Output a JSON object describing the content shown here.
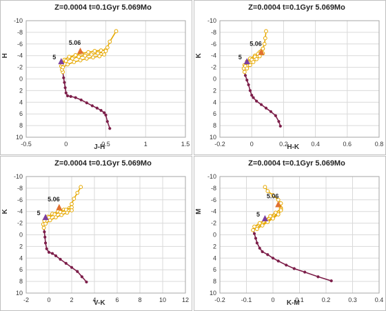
{
  "chart_data": [
    {
      "type": "scatter",
      "title": "Z=0.0004  t=0.1Gyr  5.069Mo",
      "xlabel": "J-H",
      "ylabel": "H",
      "xlim": [
        -0.5,
        1.5
      ],
      "ylim": [
        10,
        -10
      ],
      "xticks": [
        "-0.5",
        "0",
        "0.5",
        "1",
        "1.5"
      ],
      "yticks": [
        "-10",
        "-8",
        "-6",
        "-4",
        "-2",
        "0",
        "2",
        "4",
        "6",
        "8",
        "10"
      ],
      "xtick_values": [
        -0.5,
        0,
        0.5,
        1,
        1.5
      ],
      "ytick_values": [
        -10,
        -8,
        -6,
        -4,
        -2,
        0,
        2,
        4,
        6,
        8,
        10
      ],
      "grid": true,
      "series": [
        {
          "color": "#7d1f4a",
          "x": [
            0.55,
            0.52,
            0.5,
            0.48,
            0.44,
            0.39,
            0.33,
            0.26,
            0.19,
            0.12,
            0.06,
            0.02,
            0.0,
            -0.01,
            -0.02,
            -0.03,
            -0.04
          ],
          "y": [
            8.5,
            7.3,
            6.2,
            5.8,
            5.4,
            5.0,
            4.6,
            4.1,
            3.6,
            3.2,
            3.0,
            2.9,
            2.4,
            1.5,
            0.6,
            -0.2,
            -1.2
          ]
        },
        {
          "color": "#e6a800",
          "x": [
            -0.04,
            -0.05,
            -0.06,
            -0.05,
            -0.02,
            0.04,
            0.12,
            0.2,
            0.28,
            0.36,
            0.44,
            0.5,
            0.52,
            0.55,
            0.63
          ],
          "y": [
            -1.2,
            -1.6,
            -2.2,
            -2.8,
            -3.3,
            -3.8,
            -4.1,
            -4.4,
            -4.6,
            -4.8,
            -4.9,
            -5.0,
            -5.4,
            -6.4,
            -8.2
          ]
        },
        {
          "color": "#e6a800",
          "x": [
            -0.05,
            0.0,
            0.08,
            0.16,
            0.24,
            0.32,
            0.4,
            0.47,
            0.5
          ],
          "y": [
            -2.6,
            -3.1,
            -3.5,
            -3.8,
            -4.0,
            -4.2,
            -4.4,
            -4.6,
            -4.8
          ]
        },
        {
          "color": "#e6a800",
          "x": [
            -0.04,
            0.02,
            0.1,
            0.18,
            0.26,
            0.34,
            0.42,
            0.48
          ],
          "y": [
            -2.0,
            -2.5,
            -2.9,
            -3.2,
            -3.5,
            -3.7,
            -3.9,
            -4.2
          ]
        }
      ],
      "markers": [
        {
          "label": "5",
          "x": -0.06,
          "y": -3.0,
          "color": "#7b3fa0"
        },
        {
          "label": "5.06",
          "x": 0.18,
          "y": -4.8,
          "color": "#e07030"
        }
      ]
    },
    {
      "type": "scatter",
      "title": "Z=0.0004  t=0.1Gyr  5.069Mo",
      "xlabel": "H-K",
      "ylabel": "K",
      "xlim": [
        -0.2,
        0.8
      ],
      "ylim": [
        10,
        -10
      ],
      "xticks": [
        "-0.2",
        "0",
        "0.2",
        "0.4",
        "0.6",
        "0.8"
      ],
      "yticks": [
        "-10",
        "-8",
        "-6",
        "-4",
        "-2",
        "0",
        "2",
        "4",
        "6",
        "8",
        "10"
      ],
      "xtick_values": [
        -0.2,
        0,
        0.2,
        0.4,
        0.6,
        0.8
      ],
      "ytick_values": [
        -10,
        -8,
        -6,
        -4,
        -2,
        0,
        2,
        4,
        6,
        8,
        10
      ],
      "grid": true,
      "series": [
        {
          "color": "#7d1f4a",
          "x": [
            0.18,
            0.17,
            0.15,
            0.12,
            0.09,
            0.06,
            0.03,
            0.01,
            0.0,
            -0.01,
            -0.02,
            -0.03,
            -0.04,
            -0.045
          ],
          "y": [
            8.1,
            7.3,
            6.3,
            5.6,
            5.0,
            4.4,
            3.8,
            3.2,
            2.8,
            2.0,
            1.0,
            0.2,
            -0.6,
            -1.2
          ]
        },
        {
          "color": "#e6a800",
          "x": [
            -0.045,
            -0.05,
            -0.045,
            -0.03,
            -0.01,
            0.02,
            0.05,
            0.07,
            0.08,
            0.085,
            0.09
          ],
          "y": [
            -1.2,
            -1.8,
            -2.4,
            -3.0,
            -3.5,
            -4.0,
            -4.6,
            -5.2,
            -6.0,
            -7.0,
            -8.2
          ]
        },
        {
          "color": "#e6a800",
          "x": [
            -0.04,
            -0.02,
            0.0,
            0.02,
            0.04,
            0.06,
            0.07
          ],
          "y": [
            -2.2,
            -2.8,
            -3.3,
            -3.8,
            -4.3,
            -4.8,
            -5.2
          ]
        },
        {
          "color": "#e6a800",
          "x": [
            -0.03,
            -0.01,
            0.01,
            0.03,
            0.05,
            0.07
          ],
          "y": [
            -1.8,
            -2.4,
            -2.9,
            -3.4,
            -3.9,
            -4.4
          ]
        }
      ],
      "markers": [
        {
          "label": "5",
          "x": -0.03,
          "y": -3.0,
          "color": "#7b3fa0"
        },
        {
          "label": "5.06",
          "x": 0.06,
          "y": -4.6,
          "color": "#e07030"
        }
      ]
    },
    {
      "type": "scatter",
      "title": "Z=0.0004  t=0.1Gyr  5.069Mo",
      "xlabel": "V-K",
      "ylabel": "K",
      "xlim": [
        -2,
        12
      ],
      "ylim": [
        10,
        -10
      ],
      "xticks": [
        "-2",
        "0",
        "2",
        "4",
        "6",
        "8",
        "10",
        "12"
      ],
      "yticks": [
        "-10",
        "-8",
        "-6",
        "-4",
        "-2",
        "0",
        "2",
        "4",
        "6",
        "8",
        "10"
      ],
      "xtick_values": [
        -2,
        0,
        2,
        4,
        6,
        8,
        10,
        12
      ],
      "ytick_values": [
        -10,
        -8,
        -6,
        -4,
        -2,
        0,
        2,
        4,
        6,
        8,
        10
      ],
      "grid": true,
      "series": [
        {
          "color": "#7d1f4a",
          "x": [
            3.3,
            2.9,
            2.5,
            2.0,
            1.5,
            1.0,
            0.6,
            0.3,
            0.0,
            -0.2,
            -0.3,
            -0.35,
            -0.4,
            -0.45
          ],
          "y": [
            8.1,
            7.2,
            6.3,
            5.6,
            4.9,
            4.2,
            3.6,
            3.2,
            3.0,
            2.4,
            1.4,
            0.4,
            -0.5,
            -1.2
          ]
        },
        {
          "color": "#e6a800",
          "x": [
            -0.45,
            -0.5,
            -0.4,
            -0.1,
            0.3,
            0.8,
            1.3,
            1.8,
            2.0,
            2.2,
            2.5,
            2.8
          ],
          "y": [
            -1.2,
            -1.8,
            -2.5,
            -3.1,
            -3.6,
            -4.0,
            -4.3,
            -4.6,
            -5.3,
            -6.2,
            -7.2,
            -8.2
          ]
        },
        {
          "color": "#e6a800",
          "x": [
            -0.4,
            0.0,
            0.5,
            1.0,
            1.5,
            2.0
          ],
          "y": [
            -2.4,
            -3.0,
            -3.5,
            -3.9,
            -4.3,
            -4.7
          ]
        },
        {
          "color": "#e6a800",
          "x": [
            -0.3,
            0.1,
            0.6,
            1.1,
            1.6,
            2.0
          ],
          "y": [
            -1.9,
            -2.5,
            -3.0,
            -3.4,
            -3.8,
            -4.2
          ]
        }
      ],
      "markers": [
        {
          "label": "5",
          "x": -0.3,
          "y": -3.0,
          "color": "#7b3fa0"
        },
        {
          "label": "5.06",
          "x": 0.9,
          "y": -4.7,
          "color": "#e07030"
        }
      ]
    },
    {
      "type": "scatter",
      "title": "Z=0.0004  t=0.1Gyr  5.069Mo",
      "xlabel": "K-M",
      "ylabel": "M",
      "xlim": [
        -0.2,
        0.4
      ],
      "ylim": [
        10,
        -10
      ],
      "xticks": [
        "-0.2",
        "-0.1",
        "0",
        "0.1",
        "0.2",
        "0.3",
        "0.4"
      ],
      "yticks": [
        "-10",
        "-8",
        "-6",
        "-4",
        "-2",
        "0",
        "2",
        "4",
        "6",
        "8",
        "10"
      ],
      "xtick_values": [
        -0.2,
        -0.1,
        0,
        0.1,
        0.2,
        0.3,
        0.4
      ],
      "ytick_values": [
        -10,
        -8,
        -6,
        -4,
        -2,
        0,
        2,
        4,
        6,
        8,
        10
      ],
      "grid": true,
      "series": [
        {
          "color": "#7d1f4a",
          "x": [
            0.22,
            0.17,
            0.12,
            0.08,
            0.05,
            0.02,
            0.0,
            -0.02,
            -0.04,
            -0.05,
            -0.06,
            -0.065,
            -0.07,
            -0.075
          ],
          "y": [
            7.9,
            7.2,
            6.4,
            5.8,
            5.2,
            4.5,
            4.0,
            3.4,
            2.9,
            2.3,
            1.4,
            0.6,
            -0.2,
            -0.8
          ]
        },
        {
          "color": "#e6a800",
          "x": [
            -0.075,
            -0.06,
            -0.04,
            -0.02,
            0.0,
            0.02,
            0.03,
            0.03,
            0.02,
            0.0,
            -0.02,
            -0.03
          ],
          "y": [
            -0.8,
            -1.3,
            -1.8,
            -2.4,
            -3.0,
            -3.8,
            -4.6,
            -5.4,
            -6.0,
            -6.8,
            -7.5,
            -8.2
          ]
        },
        {
          "color": "#e6a800",
          "x": [
            -0.07,
            -0.05,
            -0.03,
            -0.01,
            0.01,
            0.03
          ],
          "y": [
            -1.4,
            -2.0,
            -2.6,
            -3.2,
            -3.8,
            -4.4
          ]
        },
        {
          "color": "#e6a800",
          "x": [
            -0.06,
            -0.04,
            -0.02,
            0.0,
            0.02,
            0.03
          ],
          "y": [
            -1.0,
            -1.6,
            -2.2,
            -2.8,
            -3.5,
            -4.2
          ]
        }
      ],
      "markers": [
        {
          "label": "5",
          "x": -0.03,
          "y": -2.8,
          "color": "#7b3fa0"
        },
        {
          "label": "5.06",
          "x": 0.02,
          "y": -5.2,
          "color": "#e07030"
        }
      ]
    }
  ]
}
